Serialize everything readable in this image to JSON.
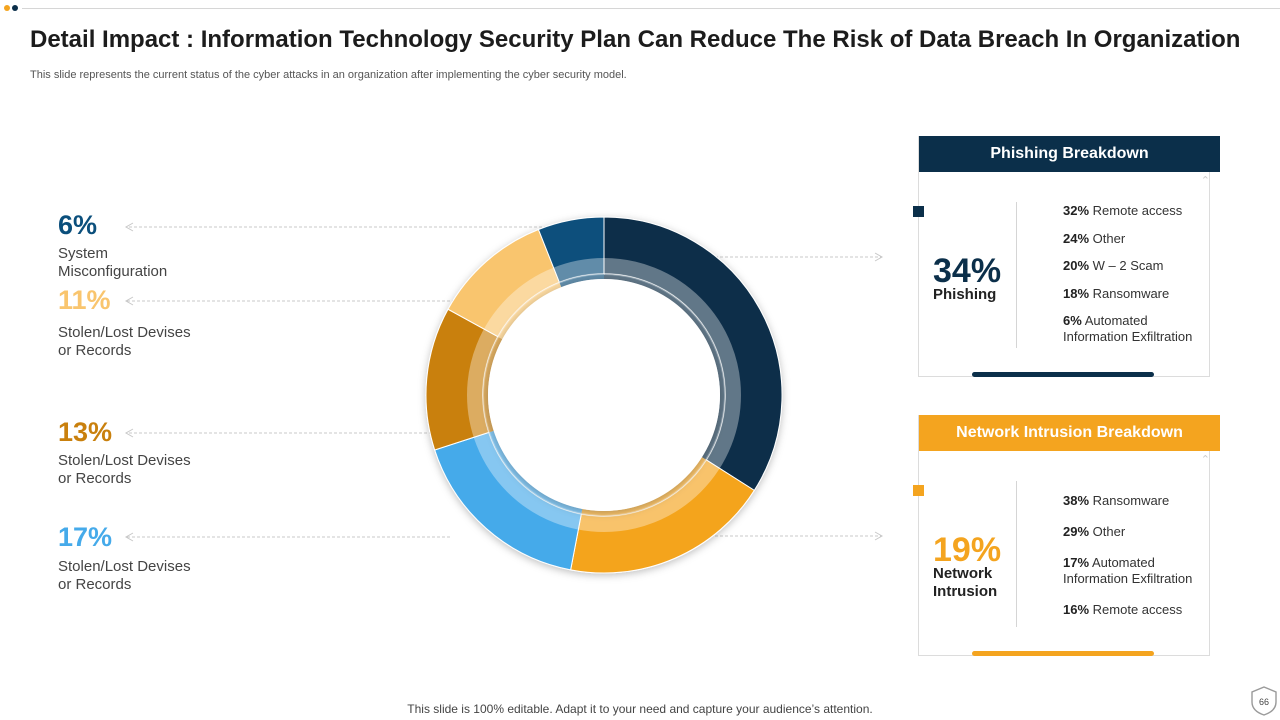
{
  "slide": {
    "title": "Detail Impact : Information Technology Security Plan Can Reduce The Risk of Data Breach In Organization",
    "subtitle": "This slide represents the current status of the cyber attacks in an organization after implementing the cyber security model.",
    "footer": "This slide is 100% editable. Adapt it to your need and capture your audience’s attention.",
    "page_number": "66"
  },
  "colors": {
    "navy": "#0b2f4a",
    "orange": "#f4a41f",
    "light_orange": "#f9c56e",
    "dark_gold": "#c9800d",
    "blue": "#45aaea",
    "dot_orange": "#f4a41f",
    "dot_navy": "#0b2f4a"
  },
  "chart_data": {
    "type": "pie",
    "style": "donut",
    "slices": [
      {
        "label": "Phishing",
        "value": 34,
        "color": "#0b2f4a"
      },
      {
        "label": "Network Intrusion",
        "value": 19,
        "color": "#f4a41f"
      },
      {
        "label": "Stolen/Lost Devises or Records",
        "value": 17,
        "color": "#45aaea"
      },
      {
        "label": "Stolen/Lost Devises or Records",
        "value": 13,
        "color": "#c9800d"
      },
      {
        "label": "Stolen/Lost Devises or Records",
        "value": 11,
        "color": "#f9c56e"
      },
      {
        "label": "System Misconfiguration",
        "value": 6,
        "color": "#0b4f7c"
      }
    ]
  },
  "legend": [
    {
      "pct": "6%",
      "label": "System\nMisconfiguration",
      "color": "#0b4f7c"
    },
    {
      "pct": "11%",
      "label": "Stolen/Lost Devises\nor Records",
      "color": "#f9c56e"
    },
    {
      "pct": "13%",
      "label": "Stolen/Lost Devises\nor Records",
      "color": "#c9800d"
    },
    {
      "pct": "17%",
      "label": "Stolen/Lost Devises\nor Records",
      "color": "#45aaea"
    }
  ],
  "phishing": {
    "header": "Phishing Breakdown",
    "pct": "34%",
    "name": "Phishing",
    "items": [
      {
        "pct": "32%",
        "text": "Remote access"
      },
      {
        "pct": "24%",
        "text": "Other"
      },
      {
        "pct": "20%",
        "text": "W – 2 Scam"
      },
      {
        "pct": "18%",
        "text": "Ransomware"
      },
      {
        "pct": "6%",
        "text": "Automated\nInformation Exfiltration"
      }
    ]
  },
  "network": {
    "header": "Network Intrusion Breakdown",
    "pct": "19%",
    "name": "Network\nIntrusion",
    "items": [
      {
        "pct": "38%",
        "text": "Ransomware"
      },
      {
        "pct": "29%",
        "text": "Other"
      },
      {
        "pct": "17%",
        "text": "Automated\nInformation Exfiltration"
      },
      {
        "pct": "16%",
        "text": "Remote access"
      }
    ]
  }
}
